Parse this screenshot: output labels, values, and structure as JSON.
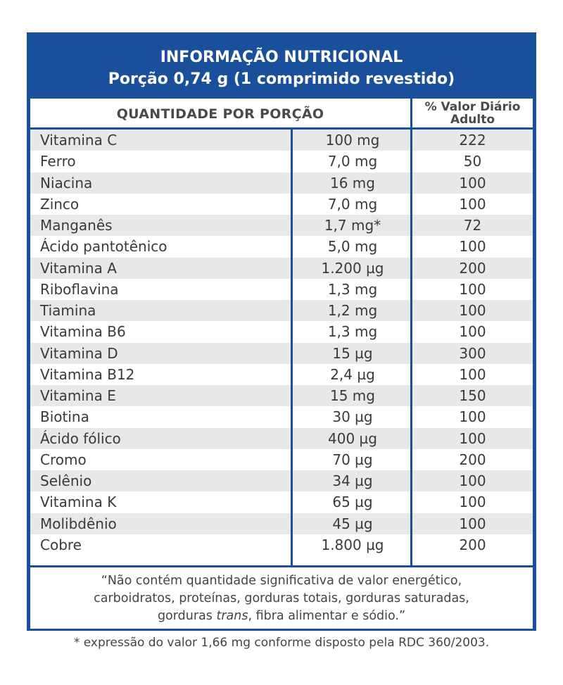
{
  "header": {
    "title": "INFORMAÇÃO NUTRICIONAL",
    "subtitle": "Porção 0,74 g (1 comprimido revestido)"
  },
  "columns": {
    "quantity": "QUANTIDADE POR PORÇÃO",
    "daily_value_line1": "% Valor Diário",
    "daily_value_line2": "Adulto"
  },
  "rows": [
    {
      "name": "Vitamina C",
      "qty": "100 mg",
      "pct": "222"
    },
    {
      "name": "Ferro",
      "qty": "7,0 mg",
      "pct": "50"
    },
    {
      "name": "Niacina",
      "qty": "16 mg",
      "pct": "100"
    },
    {
      "name": "Zinco",
      "qty": "7,0 mg",
      "pct": "100"
    },
    {
      "name": "Manganês",
      "qty": "1,7 mg*",
      "pct": "72"
    },
    {
      "name": "Ácido pantotênico",
      "qty": "5,0 mg",
      "pct": "100"
    },
    {
      "name": "Vitamina A",
      "qty": "1.200 µg",
      "pct": "200"
    },
    {
      "name": "Riboflavina",
      "qty": "1,3 mg",
      "pct": "100"
    },
    {
      "name": "Tiamina",
      "qty": "1,2 mg",
      "pct": "100"
    },
    {
      "name": "Vitamina B6",
      "qty": "1,3 mg",
      "pct": "100"
    },
    {
      "name": "Vitamina D",
      "qty": "15 µg",
      "pct": "300"
    },
    {
      "name": "Vitamina B12",
      "qty": "2,4 µg",
      "pct": "100"
    },
    {
      "name": "Vitamina E",
      "qty": "15 mg",
      "pct": "150"
    },
    {
      "name": "Biotina",
      "qty": "30 µg",
      "pct": "100"
    },
    {
      "name": "Ácido fólico",
      "qty": "400 µg",
      "pct": "100"
    },
    {
      "name": "Cromo",
      "qty": "70 µg",
      "pct": "200"
    },
    {
      "name": "Selênio",
      "qty": "34 µg",
      "pct": "100"
    },
    {
      "name": "Vitamina K",
      "qty": "65 µg",
      "pct": "100"
    },
    {
      "name": "Molibdênio",
      "qty": "45 µg",
      "pct": "100"
    },
    {
      "name": "Cobre",
      "qty": "1.800 µg",
      "pct": "200"
    }
  ],
  "note": {
    "line1": "“Não contém quantidade significativa de valor energético,",
    "line2": "carboidratos, proteínas, gorduras totais, gorduras saturadas,",
    "line3_pre": "gorduras ",
    "line3_italic": "trans",
    "line3_post": ", fibra alimentar e sódio.”"
  },
  "footnote": "* expressão do valor 1,66 mg conforme disposto pela RDC 360/2003.",
  "colors": {
    "brand_blue": "#1a4f9c",
    "row_shade": "#e8e8ea"
  }
}
